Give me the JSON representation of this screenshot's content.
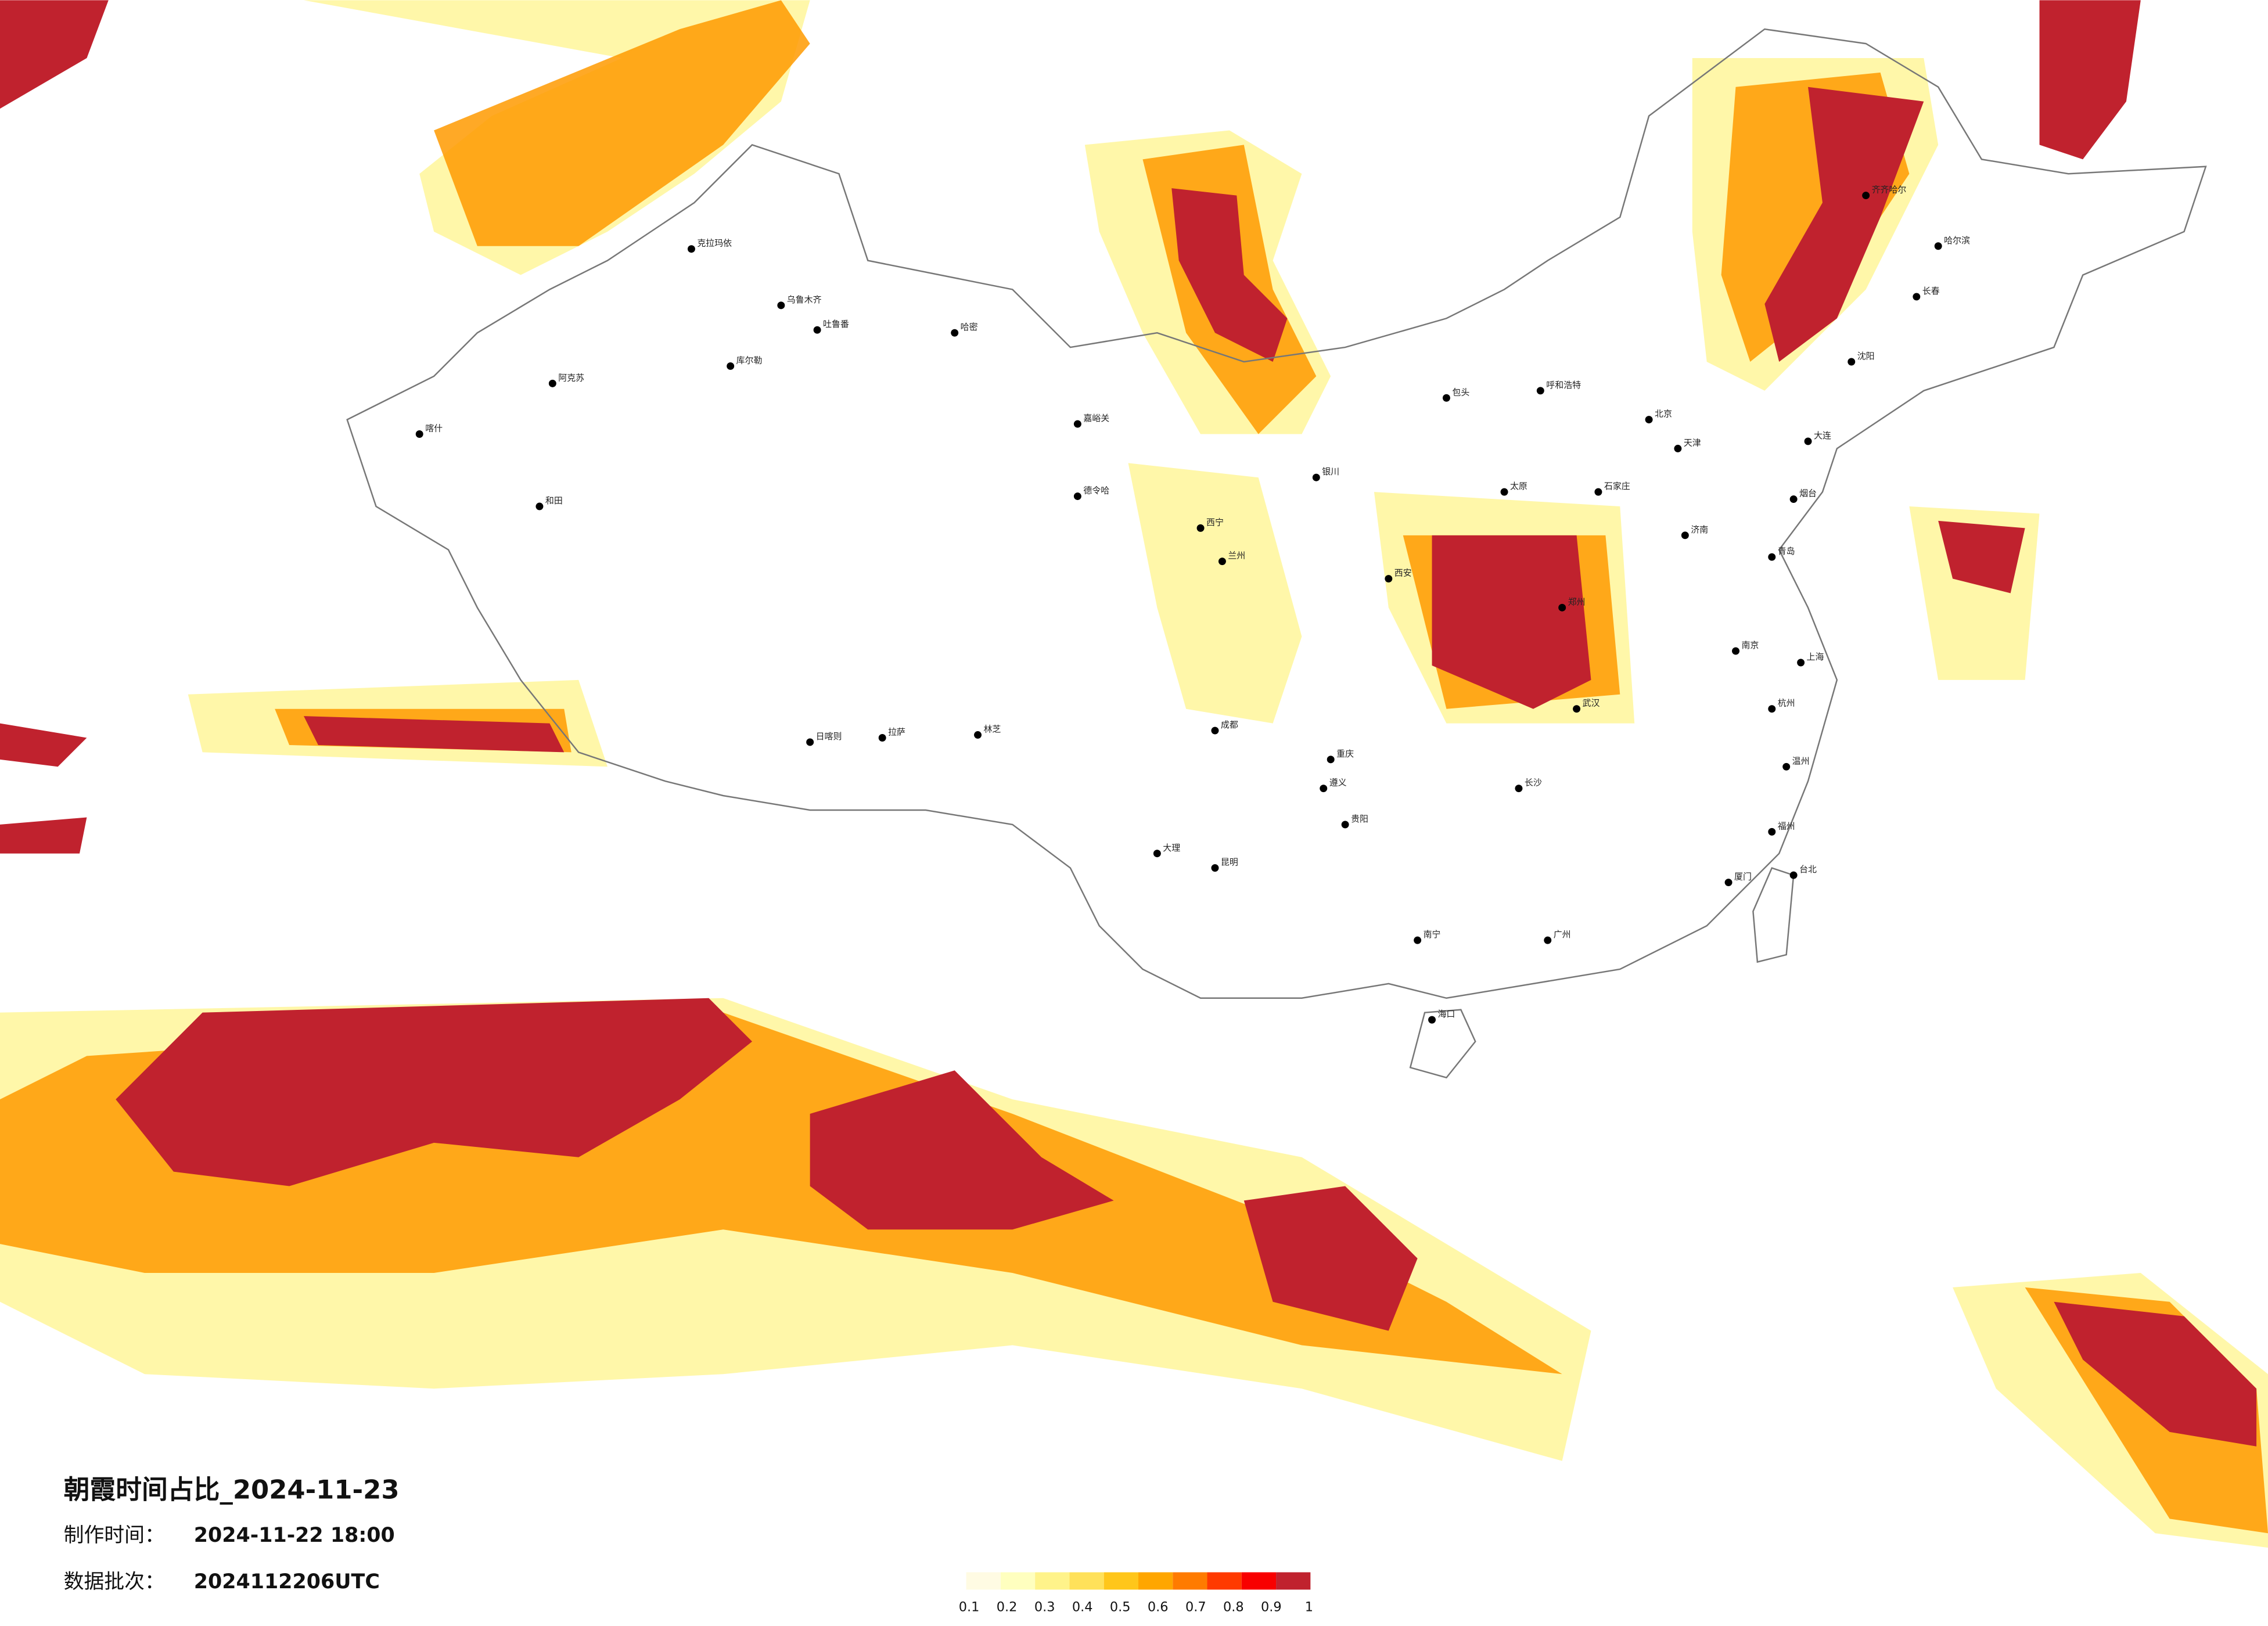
{
  "title": "朝霞时间占比_2024-11-23",
  "made_time": {
    "label": "制作时间：",
    "value": "2024-11-22 18:00"
  },
  "data_batch": {
    "label": "数据批次：",
    "value": "2024112206UTC"
  },
  "colorbar": {
    "ticks": [
      0.1,
      0.2,
      0.3,
      0.4,
      0.5,
      0.6,
      0.7,
      0.8,
      0.9,
      1
    ],
    "colors": [
      "#fffbe3",
      "#ffffbf",
      "#fff38a",
      "#ffe15a",
      "#ffc61a",
      "#ffa600",
      "#ff7b00",
      "#ff3a00",
      "#f80000",
      "#c0222e"
    ]
  },
  "cities": [
    "克拉玛依",
    "乌鲁木齐",
    "吐鲁番",
    "哈密",
    "库尔勒",
    "阿克苏",
    "喀什",
    "和田",
    "嘉峪关",
    "德令哈",
    "西宁",
    "兰州",
    "银川",
    "呼和浩特",
    "包头",
    "太原",
    "石家庄",
    "北京",
    "天津",
    "济南",
    "郑州",
    "西安",
    "成都",
    "重庆",
    "贵阳",
    "昆明",
    "南宁",
    "广州",
    "海口",
    "长沙",
    "武汉",
    "南京",
    "上海",
    "杭州",
    "福州",
    "台北",
    "哈尔滨",
    "长春",
    "沈阳",
    "大连",
    "齐齐哈尔",
    "拉萨",
    "日喀则",
    "林芝",
    "大理",
    "遵义",
    "温州",
    "厦门",
    "青岛",
    "烟台"
  ]
}
